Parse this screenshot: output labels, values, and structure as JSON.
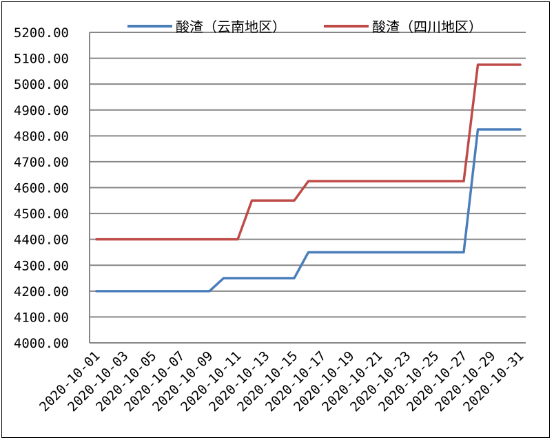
{
  "chart_data": {
    "type": "line",
    "title": "",
    "xlabel": "",
    "ylabel": "",
    "ylim": [
      4000,
      5200
    ],
    "ytick_step": 100,
    "grid": true,
    "legend_placement": "top",
    "x": [
      "2020-10-01",
      "2020-10-02",
      "2020-10-03",
      "2020-10-04",
      "2020-10-05",
      "2020-10-06",
      "2020-10-07",
      "2020-10-08",
      "2020-10-09",
      "2020-10-10",
      "2020-10-11",
      "2020-10-12",
      "2020-10-13",
      "2020-10-14",
      "2020-10-15",
      "2020-10-16",
      "2020-10-17",
      "2020-10-18",
      "2020-10-19",
      "2020-10-20",
      "2020-10-21",
      "2020-10-22",
      "2020-10-23",
      "2020-10-24",
      "2020-10-25",
      "2020-10-26",
      "2020-10-27",
      "2020-10-28",
      "2020-10-29",
      "2020-10-30",
      "2020-10-31"
    ],
    "yticks": [
      "4000.00",
      "4100.00",
      "4200.00",
      "4300.00",
      "4400.00",
      "4500.00",
      "4600.00",
      "4700.00",
      "4800.00",
      "4900.00",
      "5000.00",
      "5100.00",
      "5200.00"
    ],
    "series": [
      {
        "name": "酸渣（云南地区）",
        "color": "#4a7ebb",
        "values": [
          4200,
          4200,
          4200,
          4200,
          4200,
          4200,
          4200,
          4200,
          4200,
          4250,
          4250,
          4250,
          4250,
          4250,
          4250,
          4350,
          4350,
          4350,
          4350,
          4350,
          4350,
          4350,
          4350,
          4350,
          4350,
          4350,
          4350,
          4825,
          4825,
          4825,
          4825
        ]
      },
      {
        "name": "酸渣（四川地区）",
        "color": "#be4b48",
        "values": [
          4400,
          4400,
          4400,
          4400,
          4400,
          4400,
          4400,
          4400,
          4400,
          4400,
          4400,
          4550,
          4550,
          4550,
          4550,
          4625,
          4625,
          4625,
          4625,
          4625,
          4625,
          4625,
          4625,
          4625,
          4625,
          4625,
          4625,
          5075,
          5075,
          5075,
          5075
        ]
      }
    ]
  }
}
